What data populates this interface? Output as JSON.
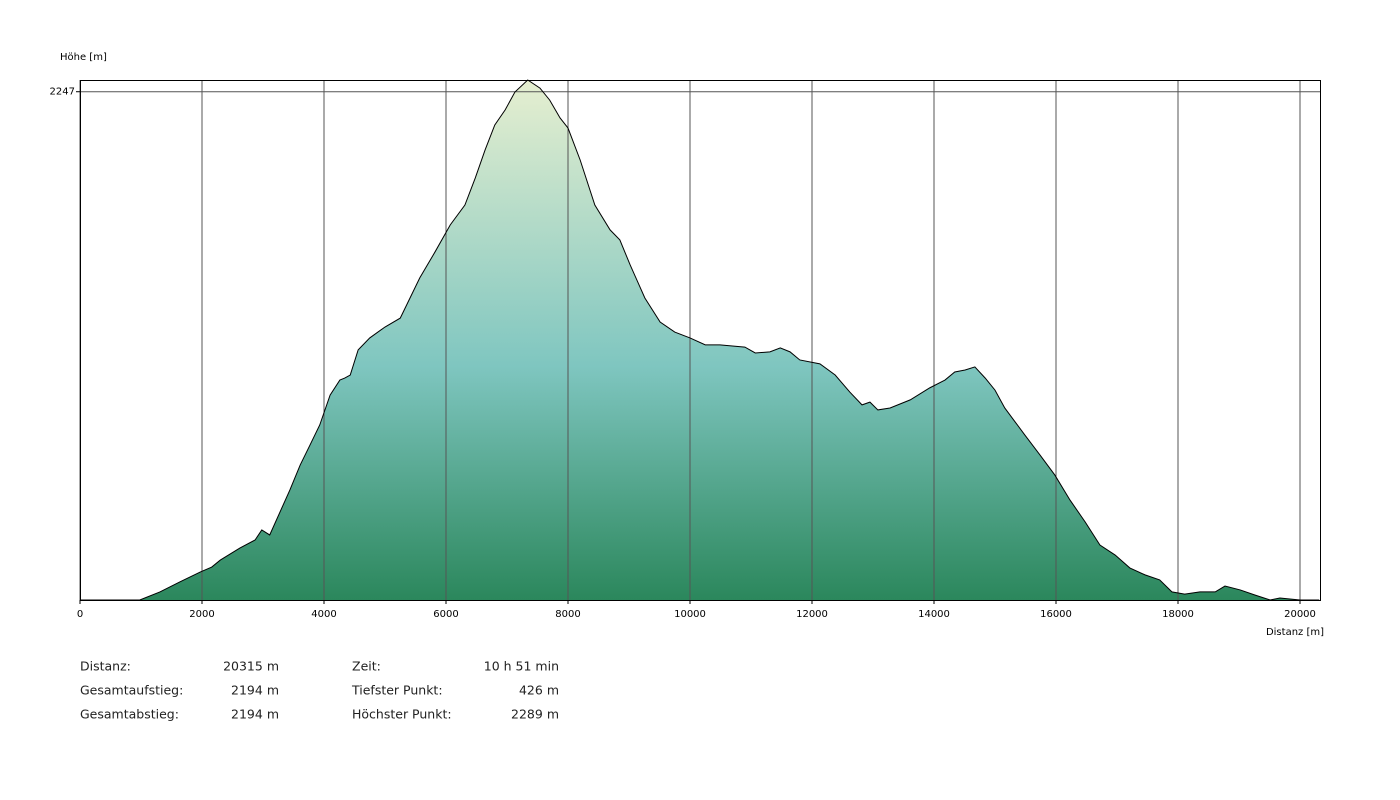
{
  "chart_data": {
    "type": "area",
    "ylabel": "Höhe [m]",
    "xlabel": "Distanz [m]",
    "x": [
      0,
      980,
      1310,
      1640,
      1970,
      2160,
      2300,
      2620,
      2870,
      2980,
      3110,
      3440,
      3610,
      3770,
      3930,
      4100,
      4260,
      4340,
      4430,
      4560,
      4750,
      5000,
      5250,
      5410,
      5570,
      5820,
      6070,
      6310,
      6480,
      6640,
      6800,
      6970,
      7130,
      7340,
      7540,
      7700,
      7870,
      8000,
      8200,
      8440,
      8690,
      8850,
      9020,
      9260,
      9510,
      9750,
      10000,
      10250,
      10490,
      10900,
      11070,
      11310,
      11480,
      11640,
      11800,
      12130,
      12380,
      12620,
      12820,
      12950,
      13080,
      13280,
      13610,
      13930,
      14180,
      14340,
      14510,
      14670,
      14840,
      15000,
      15160,
      15330,
      15490,
      15740,
      15980,
      16230,
      16480,
      16720,
      16970,
      17210,
      17460,
      17700,
      17900,
      18110,
      18360,
      18610,
      18770,
      19020,
      19260,
      19510,
      19670,
      20000,
      20315
    ],
    "values": [
      426,
      426,
      455,
      491,
      526,
      544,
      569,
      612,
      641,
      677,
      659,
      820,
      910,
      981,
      1053,
      1160,
      1214,
      1221,
      1232,
      1322,
      1365,
      1404,
      1436,
      1508,
      1580,
      1673,
      1770,
      1841,
      1938,
      2038,
      2128,
      2182,
      2246,
      2289,
      2260,
      2217,
      2153,
      2117,
      2002,
      1841,
      1752,
      1716,
      1626,
      1508,
      1422,
      1386,
      1365,
      1340,
      1340,
      1332,
      1311,
      1315,
      1329,
      1315,
      1286,
      1272,
      1232,
      1171,
      1125,
      1135,
      1107,
      1114,
      1143,
      1186,
      1214,
      1243,
      1250,
      1261,
      1221,
      1178,
      1114,
      1064,
      1017,
      945,
      874,
      784,
      705,
      623,
      587,
      541,
      516,
      498,
      455,
      447,
      455,
      455,
      476,
      462,
      444,
      426,
      433,
      426,
      426
    ],
    "color": "#000000",
    "xlim": [
      0,
      20315
    ],
    "ylim": [
      426,
      2289
    ],
    "xticks": [
      0,
      2000,
      4000,
      6000,
      8000,
      10000,
      12000,
      14000,
      16000,
      18000,
      20000
    ],
    "yticks": [
      2247
    ],
    "grid": true
  },
  "stats": [
    [
      {
        "label": "Distanz:",
        "value": "20315 m"
      },
      {
        "label": "Zeit:",
        "value": "10 h 51 min"
      }
    ],
    [
      {
        "label": "Gesamtaufstieg:",
        "value": "2194 m"
      },
      {
        "label": "Tiefster Punkt:",
        "value": "426 m"
      }
    ],
    [
      {
        "label": "Gesamtabstieg:",
        "value": "2194 m"
      },
      {
        "label": "Höchster Punkt:",
        "value": "2289 m"
      }
    ]
  ]
}
